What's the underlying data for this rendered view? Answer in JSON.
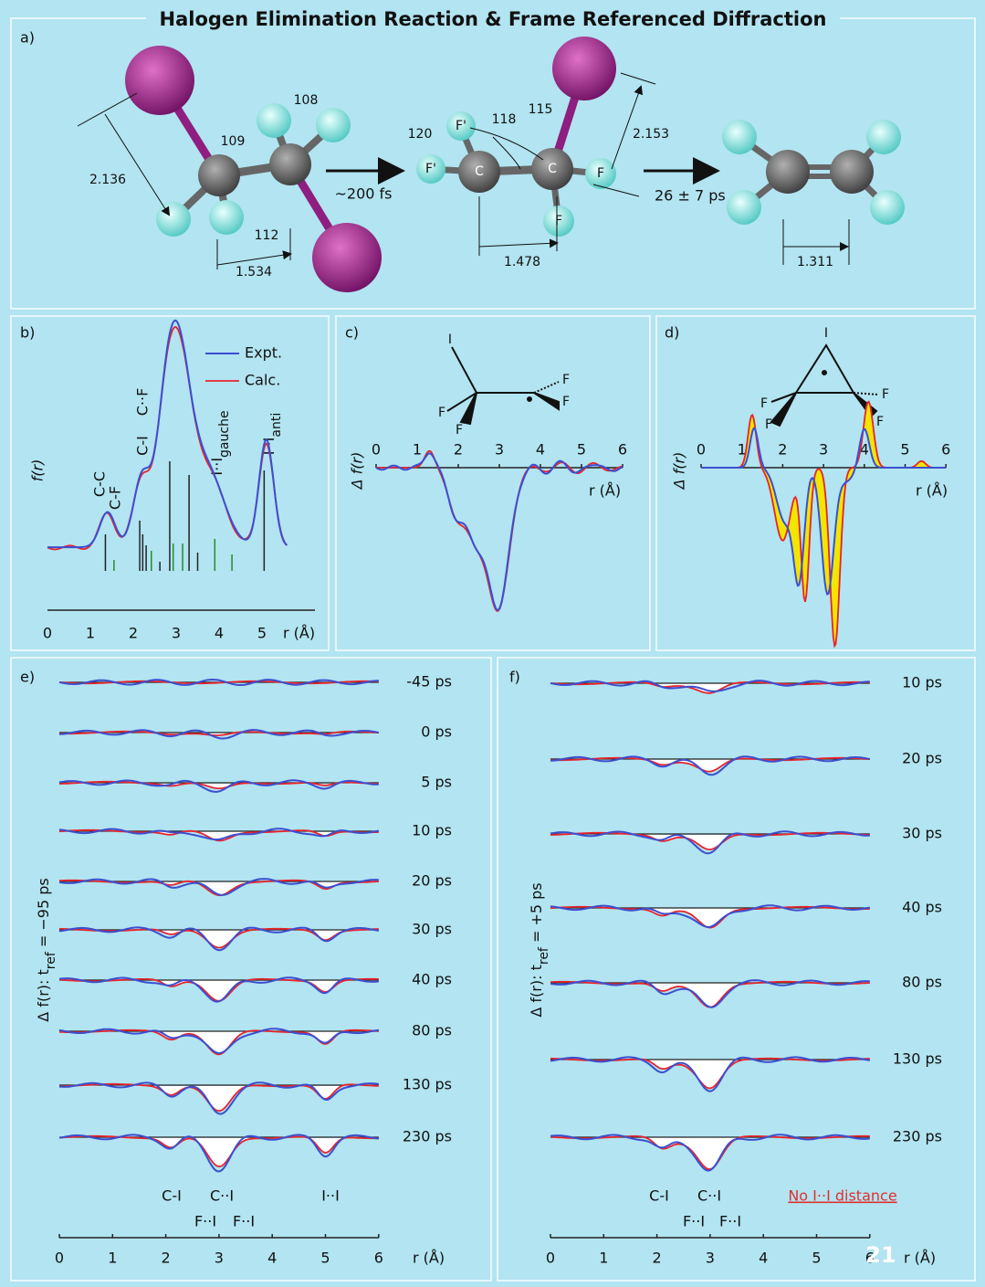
{
  "title": "Halogen Elimination Reaction & Frame Referenced Diffraction",
  "a": {
    "label": "a)",
    "arrow1": "~200 fs",
    "arrow2": "26 ± 7 ps",
    "mol1": {
      "d1": "2.136",
      "d2": "1.534",
      "ang1": "109",
      "ang2": "108",
      "ang3": "112"
    },
    "mol2": {
      "ang1": "120",
      "ang2": "118",
      "ang3": "115",
      "d1": "2.153",
      "d2": "1.478",
      "atoms": [
        "F'",
        "F'",
        "C",
        "C",
        "F",
        "F"
      ]
    },
    "mol3": {
      "d1": "1.311"
    }
  },
  "b": {
    "label": "b)",
    "ylabel": "f(r)",
    "legend": [
      "Expt.",
      "Calc."
    ],
    "peaks": [
      "C-C",
      "C-F",
      "C-I",
      "C··F"
    ],
    "gauche": {
      "text": "I··I",
      "sub": "gauche"
    },
    "anti": {
      "text": "I··I",
      "sub": "anti"
    },
    "xticks": [
      0,
      1,
      2,
      3,
      4,
      5
    ],
    "xlabel": "r (Å)"
  },
  "c": {
    "label": "c)",
    "atoms": [
      "I",
      "F",
      "F",
      "F",
      "F"
    ],
    "ylabel": "Δ f(r)",
    "xticks": [
      0,
      1,
      2,
      3,
      4,
      5,
      6
    ],
    "xlabel": "r (Å)"
  },
  "d": {
    "label": "d)",
    "atoms": [
      "I",
      "F",
      "F",
      "F",
      "F"
    ],
    "ylabel": "Δ f(r)",
    "xticks": [
      0,
      1,
      2,
      3,
      4,
      5,
      6
    ],
    "xlabel": "r (Å)"
  },
  "e": {
    "label": "e)",
    "ylabel": {
      "main": "Δ f(r): t",
      "sub": "ref",
      "rest": " = −95 ps"
    },
    "times": [
      "-45 ps",
      "0 ps",
      "5 ps",
      "10 ps",
      "20 ps",
      "30 ps",
      "40 ps",
      "80 ps",
      "130 ps",
      "230 ps"
    ],
    "peaks": [
      "C-I",
      "C··I",
      "F··I",
      "F··I",
      "I··I"
    ],
    "xticks": [
      0,
      1,
      2,
      3,
      4,
      5,
      6
    ],
    "xlabel": "r (Å)"
  },
  "f": {
    "label": "f)",
    "ylabel": {
      "main": "Δ f(r): t",
      "sub": "ref",
      "rest": " = +5 ps"
    },
    "times": [
      "10 ps",
      "20 ps",
      "30 ps",
      "40 ps",
      "80 ps",
      "130 ps",
      "230 ps"
    ],
    "peaks": [
      "C-I",
      "C··I",
      "F··I",
      "F··I"
    ],
    "note": "No I··I distance",
    "xticks": [
      0,
      1,
      2,
      3,
      4,
      5,
      6
    ],
    "xlabel": "r (Å)"
  },
  "page_number": "21"
}
